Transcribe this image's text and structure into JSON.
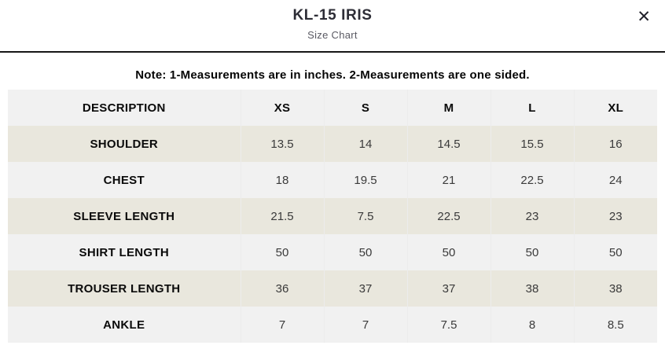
{
  "header": {
    "title": "KL-15 IRIS",
    "subtitle": "Size Chart",
    "close_icon": "✕"
  },
  "note": "Note: 1-Measurements are in inches. 2-Measurements are one sided.",
  "table": {
    "columns": [
      "DESCRIPTION",
      "XS",
      "S",
      "M",
      "L",
      "XL"
    ],
    "rows": [
      {
        "label": "SHOULDER",
        "values": [
          "13.5",
          "14",
          "14.5",
          "15.5",
          "16"
        ]
      },
      {
        "label": "CHEST",
        "values": [
          "18",
          "19.5",
          "21",
          "22.5",
          "24"
        ]
      },
      {
        "label": "SLEEVE LENGTH",
        "values": [
          "21.5",
          "7.5",
          "22.5",
          "23",
          "23"
        ]
      },
      {
        "label": "SHIRT LENGTH",
        "values": [
          "50",
          "50",
          "50",
          "50",
          "50"
        ]
      },
      {
        "label": "TROUSER LENGTH",
        "values": [
          "36",
          "37",
          "37",
          "38",
          "38"
        ]
      },
      {
        "label": "ANKLE",
        "values": [
          "7",
          "7",
          "7.5",
          "8",
          "8.5"
        ]
      }
    ]
  },
  "colors": {
    "divider": "#161616",
    "row_beige": "#e9e7dd",
    "row_gray": "#f1f1f1",
    "cell_border": "#ececec",
    "title_text": "#2d2d36",
    "subtitle_text": "#5a5a63"
  }
}
